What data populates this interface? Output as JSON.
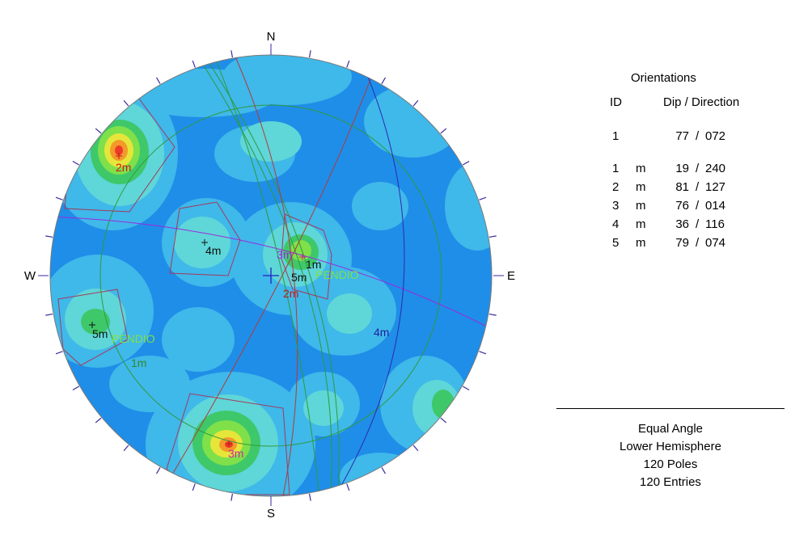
{
  "colors": {
    "background": "#1f8ee8",
    "contour_1": "#3fb8ea",
    "contour_2": "#5fd6d8",
    "contour_3": "#3ec86a",
    "contour_4": "#7fe04a",
    "contour_5": "#e6e63a",
    "contour_6": "#f39a2a",
    "contour_7": "#ee3a2a",
    "set_window": "#a33a5a",
    "great_circle_red": "#b23a3a",
    "great_circle_green": "#2f9a3a",
    "great_circle_purple": "#9a2adf",
    "great_circle_blue": "#2a2ab0",
    "tick_mark": "#3a2aa0"
  },
  "stereonet": {
    "directions": {
      "north": "N",
      "south": "S",
      "east": "E",
      "west": "W"
    },
    "set_labels": [
      {
        "text": "1m",
        "color": "#111111"
      },
      {
        "text": "2m",
        "color": "#d01818"
      },
      {
        "text": "3m",
        "color": "#cc2a9a"
      },
      {
        "text": "4m",
        "color": "#111111"
      },
      {
        "text": "5m",
        "color": "#111111"
      }
    ],
    "plane_labels": [
      {
        "text": "1m",
        "color": "#2f8a2a"
      },
      {
        "text": "2m",
        "color": "#c01818"
      },
      {
        "text": "3m",
        "color": "#9a2adf"
      },
      {
        "text": "4m",
        "color": "#2020a0"
      },
      {
        "text": "5m",
        "color": "#111111"
      }
    ],
    "pendio_labels": [
      "PENDIO",
      "PENDIO"
    ]
  },
  "legend": {
    "title": "Orientations",
    "col_id": "ID",
    "col_dip_direction": "Dip / Direction",
    "rows": [
      {
        "id": "1",
        "m": "",
        "dip": "77",
        "dir": "072"
      },
      {
        "id": "1",
        "m": "m",
        "dip": "19",
        "dir": "240"
      },
      {
        "id": "2",
        "m": "m",
        "dip": "81",
        "dir": "127"
      },
      {
        "id": "3",
        "m": "m",
        "dip": "76",
        "dir": "014"
      },
      {
        "id": "4",
        "m": "m",
        "dip": "36",
        "dir": "116"
      },
      {
        "id": "5",
        "m": "m",
        "dip": "79",
        "dir": "074"
      }
    ]
  },
  "info": {
    "projection": "Equal Angle",
    "hemisphere": "Lower Hemisphere",
    "poles": "120 Poles",
    "entries": "120 Entries"
  }
}
